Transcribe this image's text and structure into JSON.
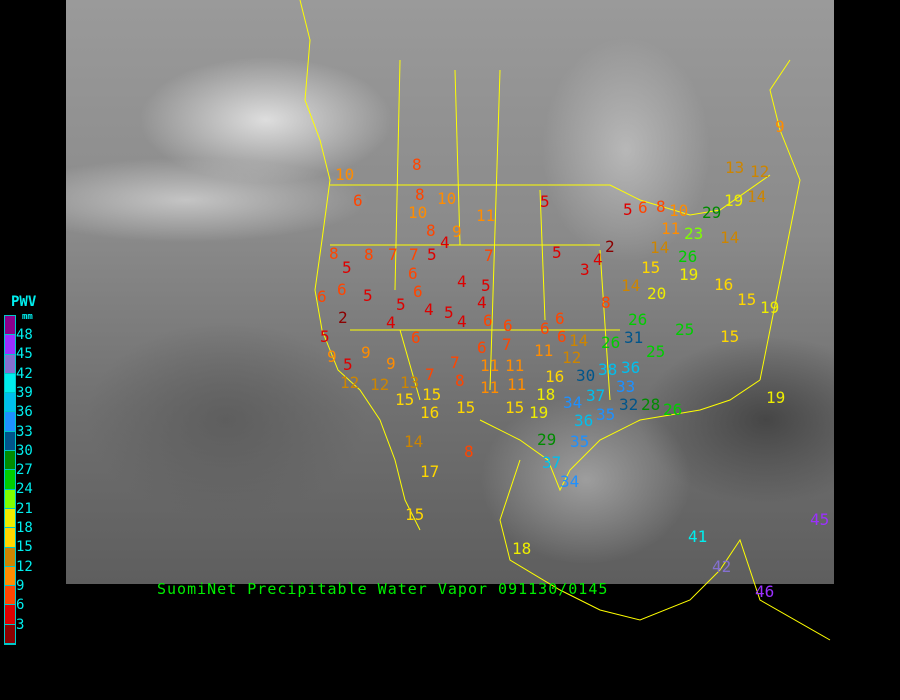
{
  "caption": "SuomiNet Precipitable Water Vapor 091130/0145",
  "legend": {
    "title": "PWV",
    "unit": "mm",
    "labels": [
      "48",
      "45",
      "42",
      "39",
      "36",
      "33",
      "30",
      "27",
      "24",
      "21",
      "18",
      "15",
      "12",
      "9",
      "6",
      "3"
    ],
    "colors": [
      "#8b008b",
      "#9b30ff",
      "#8470d0",
      "#00eeee",
      "#00bfee",
      "#1e90ff",
      "#00558b",
      "#008b00",
      "#00cd00",
      "#7fff00",
      "#eeee00",
      "#ffd700",
      "#cd8500",
      "#ff8c00",
      "#ff4500",
      "#dd0000",
      "#8b0000"
    ]
  },
  "border_color": "#ffff00",
  "stations": [
    6,
    8,
    8,
    10,
    10,
    9,
    8,
    4,
    5,
    11,
    5,
    8,
    5,
    8,
    7,
    7,
    6,
    6,
    5,
    6,
    6,
    4,
    7,
    5,
    4,
    5,
    4,
    5,
    4,
    6,
    6,
    4,
    2,
    5,
    9,
    5,
    9,
    9,
    6,
    7,
    6,
    7,
    6,
    6,
    6,
    12,
    12,
    13,
    7,
    8,
    11,
    11,
    11,
    11,
    11,
    12,
    14,
    15,
    15,
    16,
    15,
    15,
    19,
    18,
    16,
    14,
    17,
    8,
    15,
    18,
    5,
    2,
    3,
    4,
    8,
    14,
    15,
    20,
    14,
    23,
    11,
    26,
    19,
    16,
    15,
    19,
    15,
    25,
    25,
    26,
    26,
    31,
    30,
    38,
    36,
    33,
    32,
    28,
    26,
    34,
    37,
    36,
    35,
    29,
    37,
    34,
    35,
    5,
    6,
    8,
    10,
    29,
    19,
    14,
    12,
    13,
    14,
    9,
    10,
    19,
    41,
    42,
    46,
    45
  ]
}
